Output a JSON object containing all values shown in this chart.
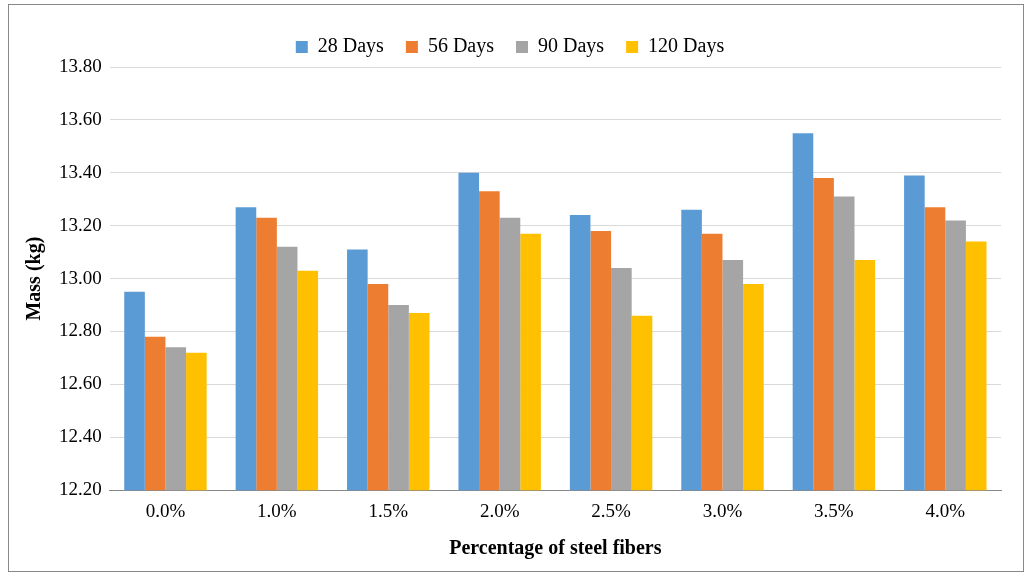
{
  "chart_data": {
    "type": "bar",
    "xlabel": "Percentage of steel fibers",
    "ylabel": "Mass (kg)",
    "categories": [
      "0.0%",
      "1.0%",
      "1.5%",
      "2.0%",
      "2.5%",
      "3.0%",
      "3.5%",
      "4.0%"
    ],
    "series": [
      {
        "name": "28 Days",
        "color": "#5b9bd5",
        "values": [
          12.95,
          13.27,
          13.11,
          13.4,
          13.24,
          13.26,
          13.55,
          13.39
        ]
      },
      {
        "name": "56 Days",
        "color": "#ed7d31",
        "values": [
          12.78,
          13.23,
          12.98,
          13.33,
          13.18,
          13.17,
          13.38,
          13.27
        ]
      },
      {
        "name": "90 Days",
        "color": "#a5a5a5",
        "values": [
          12.74,
          13.12,
          12.9,
          13.23,
          13.04,
          13.07,
          13.31,
          13.22
        ]
      },
      {
        "name": "120 Days",
        "color": "#ffc000",
        "values": [
          12.72,
          13.03,
          12.87,
          13.17,
          12.86,
          12.98,
          13.07,
          13.14
        ]
      }
    ],
    "ylim": [
      12.2,
      13.8
    ],
    "yticks": [
      {
        "value": 12.2,
        "label": "12.20"
      },
      {
        "value": 12.4,
        "label": "12.40"
      },
      {
        "value": 12.6,
        "label": "12.60"
      },
      {
        "value": 12.8,
        "label": "12.80"
      },
      {
        "value": 13.0,
        "label": "13.00"
      },
      {
        "value": 13.2,
        "label": "13.20"
      },
      {
        "value": 13.4,
        "label": "13.40"
      },
      {
        "value": 13.6,
        "label": "13.60"
      },
      {
        "value": 13.8,
        "label": "13.80"
      }
    ],
    "grid": "y",
    "legend": "top"
  }
}
